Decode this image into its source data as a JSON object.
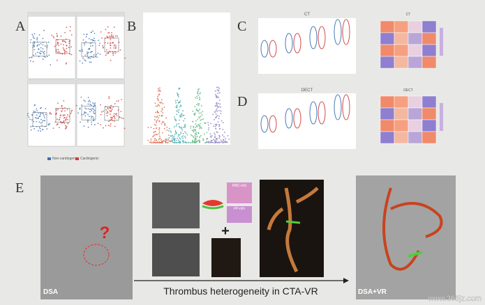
{
  "panels": [
    {
      "label": "A"
    },
    {
      "label": "B"
    },
    {
      "label": "C",
      "title": "CT"
    },
    {
      "label": "D",
      "title": "DECT"
    },
    {
      "label": "E"
    }
  ],
  "legend": [
    "Non-cardiogenic",
    "Cardiogenic"
  ],
  "panel_e": {
    "left_caption": "DSA",
    "question_mark": "?",
    "rbc_label": "RBC-rich",
    "fp_label": "FP-rich",
    "plus": "+",
    "arrow_caption": "Thrombus heterogeneity in CTA-VR",
    "right_caption": "DSA+VR"
  },
  "watermark": "www.365jz.com"
}
